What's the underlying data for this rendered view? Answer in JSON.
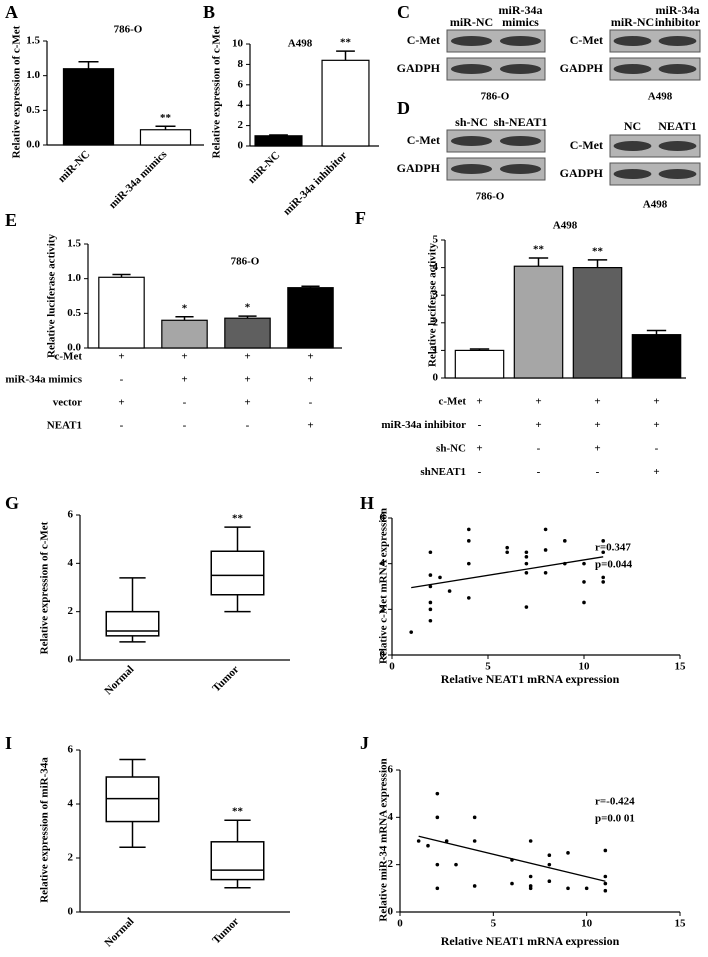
{
  "chart_data": [
    {
      "panel": "A",
      "type": "bar",
      "title": "786-O",
      "ylabel": "Relative expression of  c-Met",
      "categories": [
        "miR-NC",
        "miR-34a mimics"
      ],
      "values": [
        1.1,
        0.22
      ],
      "errors": [
        0.1,
        0.05
      ],
      "colors": [
        "#000000",
        "#ffffff"
      ],
      "significance": [
        null,
        "**"
      ],
      "ylim": [
        0,
        1.5
      ],
      "yticks": [
        {
          "value": 0,
          "label": "0.0"
        },
        0.5,
        {
          "value": 1,
          "label": "1.0"
        },
        1.5
      ]
    },
    {
      "panel": "B",
      "type": "bar",
      "title": "A498",
      "ylabel": "Relative expression of c-Met",
      "categories": [
        "miR-NC",
        "miR-34a inhibitor"
      ],
      "values": [
        1.0,
        8.4
      ],
      "errors": [
        0.08,
        0.9
      ],
      "colors": [
        "#000000",
        "#ffffff"
      ],
      "significance": [
        null,
        "**"
      ],
      "ylim": [
        0,
        10
      ],
      "yticks": [
        0,
        2,
        4,
        6,
        8,
        10
      ]
    },
    {
      "panel": "E",
      "type": "bar",
      "title": "786-O",
      "ylabel": "Relative luciferase activity",
      "values": [
        1.02,
        0.4,
        0.43,
        0.87
      ],
      "errors": [
        0.04,
        0.05,
        0.03,
        0.02
      ],
      "colors": [
        "#ffffff",
        "#a6a6a6",
        "#5f5f5f",
        "#000000"
      ],
      "significance": [
        null,
        "*",
        "*",
        null
      ],
      "ylim": [
        0,
        1.5
      ],
      "yticks": [
        {
          "value": 0,
          "label": "0.0"
        },
        0.5,
        {
          "value": 1,
          "label": "1.0"
        },
        1.5
      ],
      "conditions": [
        {
          "name": "c-Met",
          "marks": [
            "+",
            "+",
            "+",
            "+"
          ]
        },
        {
          "name": "miR-34a mimics",
          "marks": [
            "-",
            "+",
            "+",
            "+"
          ]
        },
        {
          "name": "vector",
          "marks": [
            "+",
            "-",
            "+",
            "-"
          ]
        },
        {
          "name": "NEAT1",
          "marks": [
            "-",
            "-",
            "-",
            "+"
          ]
        }
      ]
    },
    {
      "panel": "F",
      "type": "bar",
      "title": "A498",
      "ylabel": "Relative luciferase activity",
      "values": [
        1.0,
        4.05,
        4.0,
        1.57
      ],
      "errors": [
        0.05,
        0.3,
        0.28,
        0.15
      ],
      "colors": [
        "#ffffff",
        "#a6a6a6",
        "#5f5f5f",
        "#000000"
      ],
      "significance": [
        null,
        "**",
        "**",
        null
      ],
      "ylim": [
        0,
        5
      ],
      "yticks": [
        0,
        1,
        2,
        3,
        4,
        5
      ],
      "conditions": [
        {
          "name": "c-Met",
          "marks": [
            "+",
            "+",
            "+",
            "+"
          ]
        },
        {
          "name": "miR-34a inhibitor",
          "marks": [
            "-",
            "+",
            "+",
            "+"
          ]
        },
        {
          "name": "sh-NC",
          "marks": [
            "+",
            "-",
            "+",
            "-"
          ]
        },
        {
          "name": "shNEAT1",
          "marks": [
            "-",
            "-",
            "-",
            "+"
          ]
        }
      ]
    },
    {
      "panel": "G",
      "type": "box",
      "ylabel": "Relative expression of  c-Met",
      "categories": [
        "Normal",
        "Tumor"
      ],
      "significance": [
        null,
        "**"
      ],
      "boxes": [
        {
          "min": 0.75,
          "q1": 1.0,
          "median": 1.2,
          "q3": 2.0,
          "max": 3.4
        },
        {
          "min": 2.0,
          "q1": 2.7,
          "median": 3.5,
          "q3": 4.5,
          "max": 5.5
        }
      ],
      "ylim": [
        0,
        6
      ],
      "yticks": [
        0,
        2,
        4,
        6
      ]
    },
    {
      "panel": "H",
      "type": "scatter",
      "xlabel": "Relative NEAT1 mRNA expression",
      "ylabel": "Relative c-Met mRNA expression",
      "stats": [
        "r=0.347",
        "p=0.044"
      ],
      "x": [
        1,
        2,
        2,
        2,
        2,
        2,
        2,
        2.5,
        3,
        4,
        4,
        4,
        4,
        6,
        6,
        7,
        7,
        7,
        7,
        7,
        8,
        8,
        8,
        9,
        9,
        10,
        10,
        10,
        11,
        11,
        11,
        11
      ],
      "values": [
        1,
        1.5,
        2,
        2.3,
        3,
        3.5,
        4.5,
        3.4,
        2.8,
        2.5,
        4,
        5,
        5.5,
        4.5,
        4.7,
        2.1,
        3.6,
        4,
        4.3,
        4.5,
        3.6,
        4.6,
        5.5,
        4,
        5,
        2.3,
        3.2,
        4,
        3.2,
        3.4,
        4.5,
        5
      ],
      "fit": {
        "x": [
          1,
          11
        ],
        "values": [
          2.95,
          4.3
        ]
      },
      "xlim": [
        0,
        15
      ],
      "xticks": [
        0,
        5,
        10,
        15
      ],
      "ylim": [
        0,
        6
      ],
      "yticks": [
        0,
        2,
        4,
        6
      ]
    },
    {
      "panel": "I",
      "type": "box",
      "ylabel": "Relative expression of  miR-34a",
      "categories": [
        "Normal",
        "Tumor"
      ],
      "significance": [
        null,
        "**"
      ],
      "boxes": [
        {
          "min": 2.4,
          "q1": 3.35,
          "median": 4.2,
          "q3": 5.0,
          "max": 5.65
        },
        {
          "min": 0.9,
          "q1": 1.2,
          "median": 1.55,
          "q3": 2.6,
          "max": 3.4
        }
      ],
      "ylim": [
        0,
        6
      ],
      "yticks": [
        0,
        2,
        4,
        6
      ]
    },
    {
      "panel": "J",
      "type": "scatter",
      "xlabel": "Relative NEAT1 mRNA expression",
      "ylabel": "Relative miR-34 mRNA expression",
      "stats": [
        "r=-0.424",
        "p=0.0 01"
      ],
      "x": [
        1,
        1.5,
        2,
        2,
        2,
        2,
        2.5,
        3,
        4,
        4,
        4,
        6,
        6,
        7,
        7,
        7,
        7,
        8,
        8,
        8,
        9,
        9,
        10,
        11,
        11,
        11,
        11
      ],
      "values": [
        3,
        2.8,
        1,
        2,
        4,
        5,
        3,
        2,
        1.1,
        3,
        4,
        1.2,
        2.2,
        1,
        1.1,
        1.5,
        3,
        1.3,
        2,
        2.4,
        1,
        2.5,
        1,
        0.9,
        1.2,
        1.5,
        2.6
      ],
      "fit": {
        "x": [
          1,
          11
        ],
        "values": [
          3.2,
          1.3
        ]
      },
      "xlim": [
        0,
        15
      ],
      "xticks": [
        0,
        5,
        10,
        15
      ],
      "ylim": [
        0,
        6
      ],
      "yticks": [
        0,
        2,
        4,
        6
      ]
    }
  ],
  "blots": [
    {
      "panel": "C",
      "groups": [
        {
          "lanes": [
            "miR-NC",
            "miR-34a mimics"
          ],
          "rows": [
            "C-Met",
            "GADPH"
          ],
          "cell": "786-O"
        },
        {
          "lanes": [
            "miR-NC",
            "miR-34a inhibitor"
          ],
          "rows": [
            "C-Met",
            "GADPH"
          ],
          "cell": "A498"
        }
      ]
    },
    {
      "panel": "D",
      "groups": [
        {
          "lanes": [
            "sh-NC",
            "sh-NEAT1"
          ],
          "rows": [
            "C-Met",
            "GADPH"
          ],
          "cell": "786-O"
        },
        {
          "lanes": [
            "NC",
            "NEAT1"
          ],
          "rows": [
            "C-Met",
            "GADPH"
          ],
          "cell": "A498"
        }
      ]
    }
  ]
}
